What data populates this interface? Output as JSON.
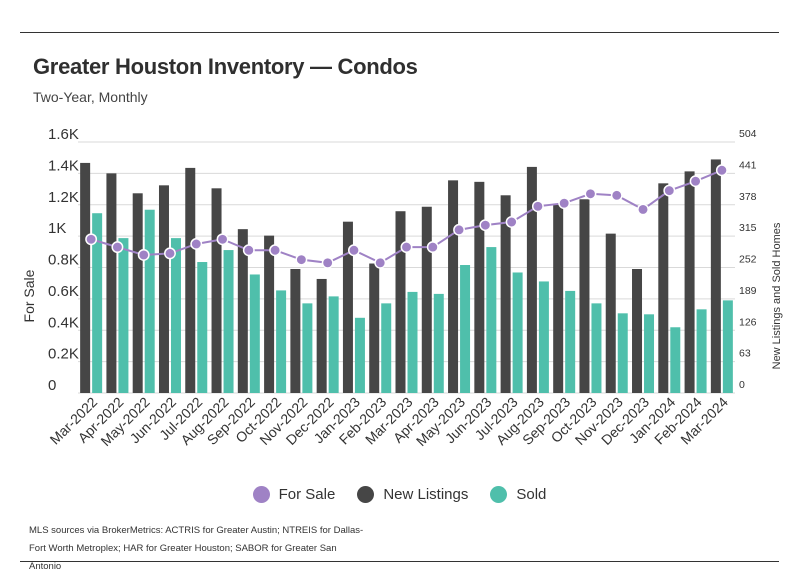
{
  "title": "Greater Houston Inventory — Condos",
  "subtitle": "Two-Year, Monthly",
  "source": "MLS sources via BrokerMetrics: ACTRIS for Greater Austin; NTREIS for Dallas-Fort Worth Metroplex; HAR for Greater Houston; SABOR for Greater San Antonio",
  "colors": {
    "for_sale": "#9f82c5",
    "new_listings": "#464646",
    "sold": "#4fbfab",
    "grid": "#d9d9d9",
    "axis_text": "#333333"
  },
  "legend": [
    {
      "label": "For Sale",
      "color": "#9f82c5"
    },
    {
      "label": "New Listings",
      "color": "#464646"
    },
    {
      "label": "Sold",
      "color": "#4fbfab"
    }
  ],
  "chart_data": {
    "type": "bar",
    "left_axis": {
      "label": "For Sale",
      "ticks": [
        "0",
        "0.2K",
        "0.4K",
        "0.6K",
        "0.8K",
        "1K",
        "1.2K",
        "1.4K",
        "1.6K"
      ],
      "min": 0,
      "max": 1600
    },
    "right_axis": {
      "label": "New Listings and Sold Homes",
      "ticks": [
        "0",
        "63",
        "126",
        "189",
        "252",
        "315",
        "378",
        "441",
        "504"
      ],
      "min": 0,
      "max": 504
    },
    "categories": [
      "Mar-2022",
      "Apr-2022",
      "May-2022",
      "Jun-2022",
      "Jul-2022",
      "Aug-2022",
      "Sep-2022",
      "Oct-2022",
      "Nov-2022",
      "Dec-2022",
      "Jan-2023",
      "Feb-2023",
      "Mar-2023",
      "Apr-2023",
      "May-2023",
      "Jun-2023",
      "Jul-2023",
      "Aug-2023",
      "Sep-2023",
      "Oct-2023",
      "Nov-2023",
      "Dec-2023",
      "Jan-2024",
      "Feb-2024",
      "Mar-2024"
    ],
    "series": [
      {
        "name": "New Listings",
        "type": "bar",
        "axis": "right",
        "values": [
          462,
          441,
          401,
          417,
          452,
          411,
          329,
          316,
          249,
          229,
          344,
          260,
          365,
          374,
          427,
          424,
          397,
          454,
          379,
          389,
          320,
          249,
          421,
          445,
          469
        ]
      },
      {
        "name": "Sold",
        "type": "bar",
        "axis": "right",
        "values": [
          361,
          311,
          368,
          311,
          263,
          287,
          238,
          206,
          180,
          194,
          151,
          180,
          203,
          199,
          257,
          293,
          242,
          224,
          205,
          180,
          160,
          158,
          132,
          168,
          186
        ]
      },
      {
        "name": "For Sale",
        "type": "line",
        "axis": "left",
        "values": [
          980,
          930,
          880,
          890,
          950,
          980,
          910,
          910,
          850,
          830,
          910,
          830,
          930,
          930,
          1040,
          1070,
          1090,
          1190,
          1210,
          1270,
          1260,
          1170,
          1290,
          1350,
          1420
        ]
      }
    ],
    "grid": true,
    "legend_position": "bottom"
  }
}
